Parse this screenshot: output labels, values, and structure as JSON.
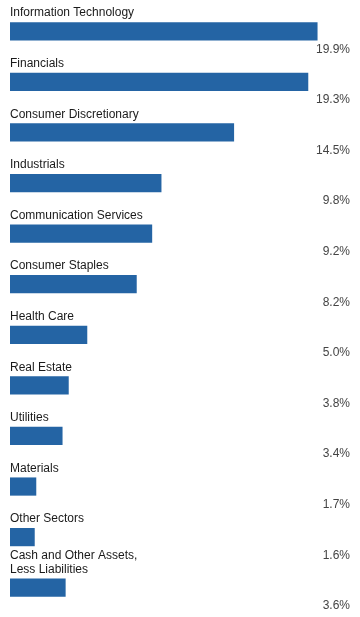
{
  "chart_data": {
    "type": "bar",
    "orientation": "horizontal",
    "categories": [
      "Information Technology",
      "Financials",
      "Consumer Discretionary",
      "Industrials",
      "Communication Services",
      "Consumer Staples",
      "Health Care",
      "Real Estate",
      "Utilities",
      "Materials",
      "Other Sectors",
      "Cash and Other Assets,\nLess Liabilities"
    ],
    "values": [
      19.9,
      19.3,
      14.5,
      9.8,
      9.2,
      8.2,
      5.0,
      3.8,
      3.4,
      1.7,
      1.6,
      3.6
    ],
    "value_labels": [
      "19.9%",
      "19.3%",
      "14.5%",
      "9.8%",
      "9.2%",
      "8.2%",
      "5.0%",
      "3.8%",
      "3.4%",
      "1.7%",
      "1.6%",
      "3.6%"
    ],
    "color": "#2464A4",
    "xlim": [
      0,
      22
    ],
    "grid": false,
    "tick_labels": false,
    "data_labels": true
  }
}
